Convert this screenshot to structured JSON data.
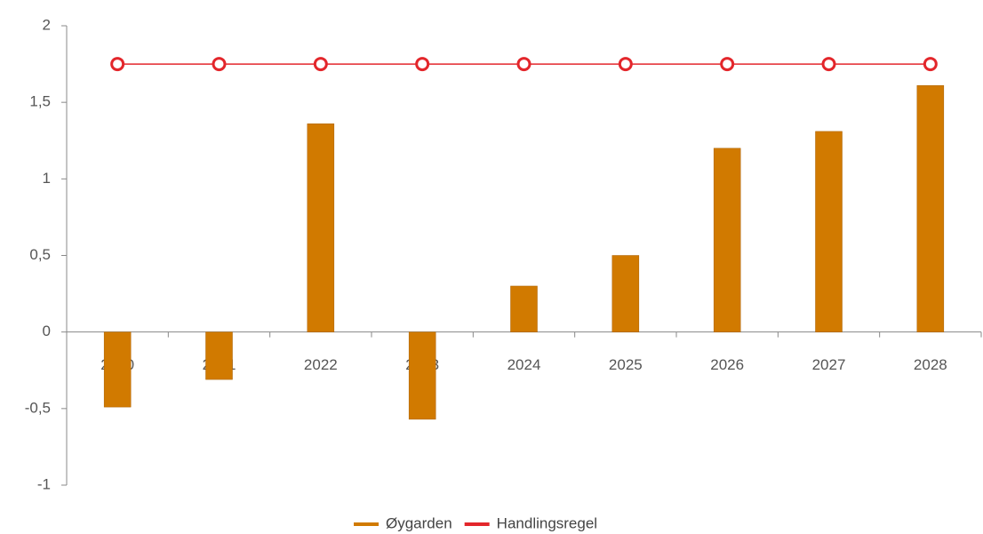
{
  "chart_data": {
    "type": "bar",
    "categories": [
      "2020",
      "2021",
      "2022",
      "2023",
      "2024",
      "2025",
      "2026",
      "2027",
      "2028"
    ],
    "series": [
      {
        "name": "Øygarden",
        "type": "bar",
        "color": "#d17a00",
        "values": [
          -0.49,
          -0.31,
          1.36,
          -0.57,
          0.3,
          0.5,
          1.2,
          1.31,
          1.61
        ]
      },
      {
        "name": "Handlingsregel",
        "type": "line",
        "color": "#e3262b",
        "values": [
          1.75,
          1.75,
          1.75,
          1.75,
          1.75,
          1.75,
          1.75,
          1.75,
          1.75
        ]
      }
    ],
    "ylim": [
      -1,
      2
    ],
    "yticks": [
      -1,
      {
        "value": -0.5,
        "label": "-0,5"
      },
      0,
      {
        "value": 0.5,
        "label": "0,5"
      },
      1,
      {
        "value": 1.5,
        "label": "1,5"
      },
      2
    ],
    "legend": "bottom"
  }
}
